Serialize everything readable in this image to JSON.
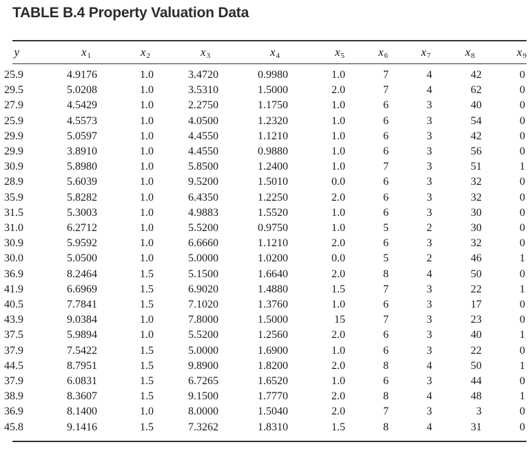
{
  "title": "TABLE B.4 Property Valuation Data",
  "columns": [
    {
      "var": "y",
      "sub": ""
    },
    {
      "var": "x",
      "sub": "1"
    },
    {
      "var": "x",
      "sub": "2"
    },
    {
      "var": "x",
      "sub": "3"
    },
    {
      "var": "x",
      "sub": "4"
    },
    {
      "var": "x",
      "sub": "5"
    },
    {
      "var": "x",
      "sub": "6"
    },
    {
      "var": "x",
      "sub": "7"
    },
    {
      "var": "x",
      "sub": "8"
    },
    {
      "var": "x",
      "sub": "9"
    }
  ],
  "rows": [
    [
      "25.9",
      "4.9176",
      "1.0",
      "3.4720",
      "0.9980",
      "1.0",
      "7",
      "4",
      "42",
      "0"
    ],
    [
      "29.5",
      "5.0208",
      "1.0",
      "3.5310",
      "1.5000",
      "2.0",
      "7",
      "4",
      "62",
      "0"
    ],
    [
      "27.9",
      "4.5429",
      "1.0",
      "2.2750",
      "1.1750",
      "1.0",
      "6",
      "3",
      "40",
      "0"
    ],
    [
      "25.9",
      "4.5573",
      "1.0",
      "4.0500",
      "1.2320",
      "1.0",
      "6",
      "3",
      "54",
      "0"
    ],
    [
      "29.9",
      "5.0597",
      "1.0",
      "4.4550",
      "1.1210",
      "1.0",
      "6",
      "3",
      "42",
      "0"
    ],
    [
      "29.9",
      "3.8910",
      "1.0",
      "4.4550",
      "0.9880",
      "1.0",
      "6",
      "3",
      "56",
      "0"
    ],
    [
      "30.9",
      "5.8980",
      "1.0",
      "5.8500",
      "1.2400",
      "1.0",
      "7",
      "3",
      "51",
      "1"
    ],
    [
      "28.9",
      "5.6039",
      "1.0",
      "9.5200",
      "1.5010",
      "0.0",
      "6",
      "3",
      "32",
      "0"
    ],
    [
      "35.9",
      "5.8282",
      "1.0",
      "6.4350",
      "1.2250",
      "2.0",
      "6",
      "3",
      "32",
      "0"
    ],
    [
      "31.5",
      "5.3003",
      "1.0",
      "4.9883",
      "1.5520",
      "1.0",
      "6",
      "3",
      "30",
      "0"
    ],
    [
      "31.0",
      "6.2712",
      "1.0",
      "5.5200",
      "0.9750",
      "1.0",
      "5",
      "2",
      "30",
      "0"
    ],
    [
      "30.9",
      "5.9592",
      "1.0",
      "6.6660",
      "1.1210",
      "2.0",
      "6",
      "3",
      "32",
      "0"
    ],
    [
      "30.0",
      "5.0500",
      "1.0",
      "5.0000",
      "1.0200",
      "0.0",
      "5",
      "2",
      "46",
      "1"
    ],
    [
      "36.9",
      "8.2464",
      "1.5",
      "5.1500",
      "1.6640",
      "2.0",
      "8",
      "4",
      "50",
      "0"
    ],
    [
      "41.9",
      "6.6969",
      "1.5",
      "6.9020",
      "1.4880",
      "1.5",
      "7",
      "3",
      "22",
      "1"
    ],
    [
      "40.5",
      "7.7841",
      "1.5",
      "7.1020",
      "1.3760",
      "1.0",
      "6",
      "3",
      "17",
      "0"
    ],
    [
      "43.9",
      "9.0384",
      "1.0",
      "7.8000",
      "1.5000",
      "15",
      "7",
      "3",
      "23",
      "0"
    ],
    [
      "37.5",
      "5.9894",
      "1.0",
      "5.5200",
      "1.2560",
      "2.0",
      "6",
      "3",
      "40",
      "1"
    ],
    [
      "37.9",
      "7.5422",
      "1.5",
      "5.0000",
      "1.6900",
      "1.0",
      "6",
      "3",
      "22",
      "0"
    ],
    [
      "44.5",
      "8.7951",
      "1.5",
      "9.8900",
      "1.8200",
      "2.0",
      "8",
      "4",
      "50",
      "1"
    ],
    [
      "37.9",
      "6.0831",
      "1.5",
      "6.7265",
      "1.6520",
      "1.0",
      "6",
      "3",
      "44",
      "0"
    ],
    [
      "38.9",
      "8.3607",
      "1.5",
      "9.1500",
      "1.7770",
      "2.0",
      "8",
      "4",
      "48",
      "1"
    ],
    [
      "36.9",
      "8.1400",
      "1.0",
      "8.0000",
      "1.5040",
      "2.0",
      "7",
      "3",
      "3",
      "0"
    ],
    [
      "45.8",
      "9.1416",
      "1.5",
      "7.3262",
      "1.8310",
      "1.5",
      "8",
      "4",
      "31",
      "0"
    ]
  ]
}
